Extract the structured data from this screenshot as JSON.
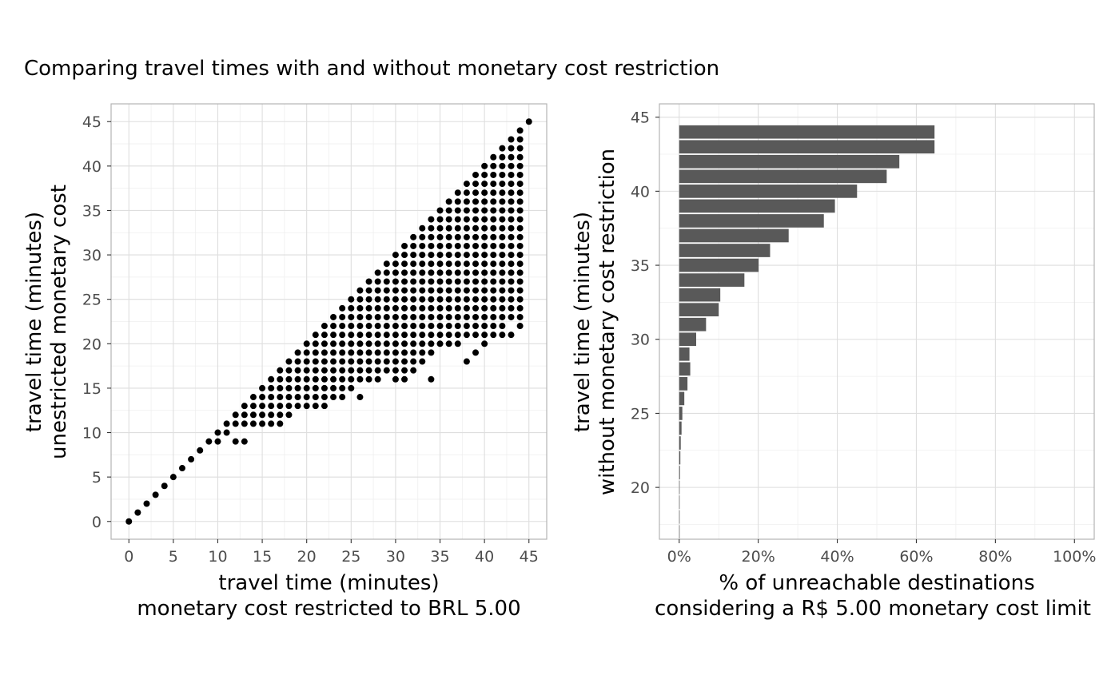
{
  "title": "Comparing travel times with and without monetary cost restriction",
  "chart_data": [
    {
      "type": "scatter",
      "xlabel": [
        "travel time (minutes)",
        "monetary cost restricted to BRL 5.00"
      ],
      "ylabel": [
        "travel time (minutes)",
        "unestricted monetary cost"
      ],
      "xlim": [
        -2,
        47
      ],
      "ylim": [
        -2,
        47
      ],
      "xticks": [
        0,
        5,
        10,
        15,
        20,
        25,
        30,
        35,
        40,
        45
      ],
      "yticks": [
        0,
        5,
        10,
        15,
        20,
        25,
        30,
        35,
        40,
        45
      ],
      "grid": true,
      "note": "points listed per y value: x runs from start to end, plus isolated extra x values",
      "rows": [
        {
          "y": 0,
          "x_from": 0,
          "x_to": 0,
          "extra_x": []
        },
        {
          "y": 1,
          "x_from": 1,
          "x_to": 1,
          "extra_x": []
        },
        {
          "y": 2,
          "x_from": 2,
          "x_to": 2,
          "extra_x": []
        },
        {
          "y": 3,
          "x_from": 3,
          "x_to": 3,
          "extra_x": []
        },
        {
          "y": 4,
          "x_from": 4,
          "x_to": 4,
          "extra_x": []
        },
        {
          "y": 5,
          "x_from": 5,
          "x_to": 5,
          "extra_x": []
        },
        {
          "y": 6,
          "x_from": 6,
          "x_to": 6,
          "extra_x": []
        },
        {
          "y": 7,
          "x_from": 7,
          "x_to": 7,
          "extra_x": []
        },
        {
          "y": 8,
          "x_from": 8,
          "x_to": 8,
          "extra_x": []
        },
        {
          "y": 9,
          "x_from": 9,
          "x_to": 10,
          "extra_x": [
            12,
            13
          ]
        },
        {
          "y": 10,
          "x_from": 10,
          "x_to": 11,
          "extra_x": []
        },
        {
          "y": 11,
          "x_from": 11,
          "x_to": 17,
          "extra_x": []
        },
        {
          "y": 12,
          "x_from": 12,
          "x_to": 18,
          "extra_x": []
        },
        {
          "y": 13,
          "x_from": 13,
          "x_to": 22,
          "extra_x": []
        },
        {
          "y": 14,
          "x_from": 14,
          "x_to": 24,
          "extra_x": [
            26
          ]
        },
        {
          "y": 15,
          "x_from": 15,
          "x_to": 25,
          "extra_x": []
        },
        {
          "y": 16,
          "x_from": 16,
          "x_to": 28,
          "extra_x": [
            30,
            31,
            34
          ]
        },
        {
          "y": 17,
          "x_from": 17,
          "x_to": 32,
          "extra_x": []
        },
        {
          "y": 18,
          "x_from": 18,
          "x_to": 33,
          "extra_x": [
            38
          ]
        },
        {
          "y": 19,
          "x_from": 19,
          "x_to": 34,
          "extra_x": [
            39
          ]
        },
        {
          "y": 20,
          "x_from": 20,
          "x_to": 37,
          "extra_x": [
            40
          ]
        },
        {
          "y": 21,
          "x_from": 21,
          "x_to": 42,
          "extra_x": [
            43
          ]
        },
        {
          "y": 22,
          "x_from": 22,
          "x_to": 42,
          "extra_x": [
            44
          ]
        },
        {
          "y": 23,
          "x_from": 23,
          "x_to": 44,
          "extra_x": []
        },
        {
          "y": 24,
          "x_from": 24,
          "x_to": 44,
          "extra_x": []
        },
        {
          "y": 25,
          "x_from": 25,
          "x_to": 44,
          "extra_x": []
        },
        {
          "y": 26,
          "x_from": 26,
          "x_to": 44,
          "extra_x": []
        },
        {
          "y": 27,
          "x_from": 27,
          "x_to": 44,
          "extra_x": []
        },
        {
          "y": 28,
          "x_from": 28,
          "x_to": 44,
          "extra_x": []
        },
        {
          "y": 29,
          "x_from": 29,
          "x_to": 44,
          "extra_x": []
        },
        {
          "y": 30,
          "x_from": 30,
          "x_to": 44,
          "extra_x": []
        },
        {
          "y": 31,
          "x_from": 31,
          "x_to": 44,
          "extra_x": []
        },
        {
          "y": 32,
          "x_from": 32,
          "x_to": 44,
          "extra_x": []
        },
        {
          "y": 33,
          "x_from": 33,
          "x_to": 44,
          "extra_x": []
        },
        {
          "y": 34,
          "x_from": 34,
          "x_to": 44,
          "extra_x": []
        },
        {
          "y": 35,
          "x_from": 35,
          "x_to": 44,
          "extra_x": []
        },
        {
          "y": 36,
          "x_from": 36,
          "x_to": 44,
          "extra_x": []
        },
        {
          "y": 37,
          "x_from": 37,
          "x_to": 44,
          "extra_x": []
        },
        {
          "y": 38,
          "x_from": 38,
          "x_to": 44,
          "extra_x": []
        },
        {
          "y": 39,
          "x_from": 39,
          "x_to": 44,
          "extra_x": []
        },
        {
          "y": 40,
          "x_from": 40,
          "x_to": 44,
          "extra_x": []
        },
        {
          "y": 41,
          "x_from": 41,
          "x_to": 44,
          "extra_x": []
        },
        {
          "y": 42,
          "x_from": 42,
          "x_to": 44,
          "extra_x": []
        },
        {
          "y": 43,
          "x_from": 43,
          "x_to": 44,
          "extra_x": []
        },
        {
          "y": 44,
          "x_from": 44,
          "x_to": 44,
          "extra_x": []
        },
        {
          "y": 45,
          "x_from": 45,
          "x_to": 45,
          "extra_x": []
        }
      ]
    },
    {
      "type": "bar",
      "orientation": "horizontal",
      "xlabel": [
        "% of unreachable destinations",
        "considering a R$ 5.00 monetary cost limit"
      ],
      "ylabel": [
        "travel time (minutes)",
        "without monetary cost restriction"
      ],
      "xlim": [
        -0.05,
        1.05
      ],
      "ylim": [
        16.5,
        45.9
      ],
      "xticks": [
        0,
        0.2,
        0.4,
        0.6,
        0.8,
        1.0
      ],
      "xtick_labels": [
        "0%",
        "20%",
        "40%",
        "60%",
        "80%",
        "100%"
      ],
      "yticks": [
        20,
        25,
        30,
        35,
        40,
        45
      ],
      "grid": true,
      "categories": [
        17,
        18,
        19,
        20,
        21,
        22,
        23,
        24,
        25,
        26,
        27,
        28,
        29,
        30,
        31,
        32,
        33,
        34,
        35,
        36,
        37,
        38,
        39,
        40,
        41,
        42,
        43,
        44
      ],
      "values": [
        0.001,
        0.001,
        0.001,
        0.001,
        0.002,
        0.003,
        0.004,
        0.006,
        0.008,
        0.013,
        0.021,
        0.028,
        0.026,
        0.043,
        0.068,
        0.1,
        0.104,
        0.165,
        0.201,
        0.23,
        0.277,
        0.366,
        0.394,
        0.45,
        0.525,
        0.557,
        0.646,
        0.646
      ]
    }
  ]
}
